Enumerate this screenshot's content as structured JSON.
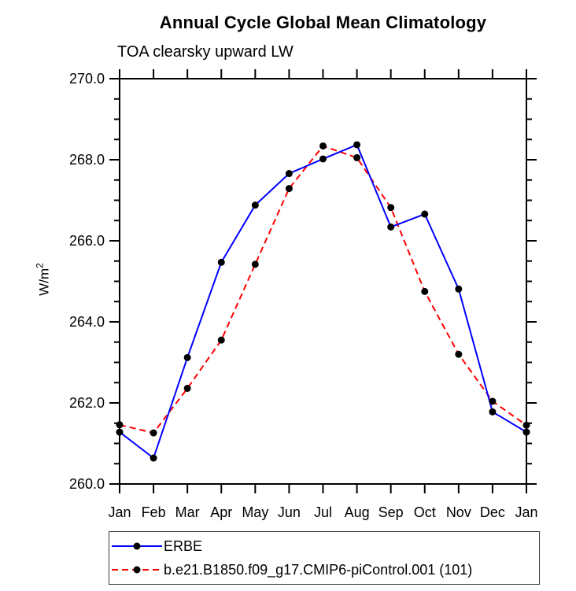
{
  "title": "Annual Cycle Global Mean Climatology",
  "subtitle": "TOA clearsky upward LW",
  "ylabel": {
    "base": "W/m",
    "sup": "2"
  },
  "axes": {
    "ytick_labels": [
      "270.0",
      "268.0",
      "266.0",
      "264.0",
      "262.0",
      "260.0"
    ],
    "xtick_labels": [
      "Jan",
      "Feb",
      "Mar",
      "Apr",
      "May",
      "Jun",
      "Jul",
      "Aug",
      "Sep",
      "Oct",
      "Nov",
      "Dec",
      "Jan"
    ]
  },
  "legend": {
    "entries": [
      {
        "label": "ERBE",
        "color": "#0000ff",
        "style": "solid"
      },
      {
        "label": "b.e21.B1850.f09_g17.CMIP6-piControl.001 (101)",
        "color": "#ff0000",
        "style": "dashed"
      }
    ]
  },
  "colors": {
    "axis": "#000000",
    "marker": "#000000",
    "erbe_line": "#0000ff",
    "model_line": "#ff0000",
    "background": "#ffffff"
  },
  "chart_data": {
    "type": "line",
    "title": "Annual Cycle Global Mean Climatology",
    "subtitle": "TOA clearsky upward LW",
    "xlabel": "",
    "ylabel": "W/m²",
    "categories": [
      "Jan",
      "Feb",
      "Mar",
      "Apr",
      "May",
      "Jun",
      "Jul",
      "Aug",
      "Sep",
      "Oct",
      "Nov",
      "Dec",
      "Jan"
    ],
    "series": [
      {
        "name": "ERBE",
        "color": "#0000ff",
        "line_style": "solid",
        "marker": "filled-circle",
        "values": [
          261.28,
          260.64,
          263.12,
          265.47,
          266.88,
          267.66,
          268.02,
          268.37,
          266.34,
          266.66,
          264.81,
          261.78,
          261.28
        ]
      },
      {
        "name": "b.e21.B1850.f09_g17.CMIP6-piControl.001 (101)",
        "color": "#ff0000",
        "line_style": "dashed",
        "marker": "filled-circle",
        "values": [
          261.46,
          261.26,
          262.36,
          263.55,
          265.42,
          267.29,
          268.34,
          268.05,
          266.82,
          264.75,
          263.2,
          262.04,
          261.45
        ]
      }
    ],
    "ylim": [
      260.0,
      270.0
    ],
    "ytick_major": 2.0,
    "ytick_minor": 0.5,
    "grid": false,
    "legend_position": "bottom-left",
    "tick_direction": "out"
  }
}
